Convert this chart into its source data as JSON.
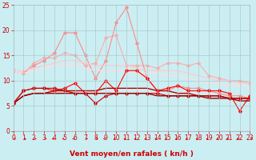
{
  "bg_color": "#cbeef3",
  "grid_color": "#aacccc",
  "xlim": [
    0,
    23
  ],
  "ylim": [
    0,
    25
  ],
  "yticks": [
    0,
    5,
    10,
    15,
    20,
    25
  ],
  "xticks": [
    0,
    1,
    2,
    3,
    4,
    5,
    6,
    7,
    8,
    9,
    10,
    11,
    12,
    13,
    14,
    15,
    16,
    17,
    18,
    19,
    20,
    21,
    22,
    23
  ],
  "series": [
    {
      "color": "#ffaaaa",
      "lw": 0.8,
      "marker": "D",
      "ms": 1.8,
      "y": [
        12.0,
        11.5,
        13.5,
        14.5,
        14.5,
        15.5,
        15.0,
        13.0,
        13.5,
        18.5,
        19.0,
        13.0,
        13.0,
        13.0,
        12.5,
        13.5,
        13.5,
        13.0,
        13.5,
        11.0,
        10.5,
        10.0,
        10.0,
        9.5
      ]
    },
    {
      "color": "#ff8888",
      "lw": 0.8,
      "marker": "D",
      "ms": 1.8,
      "y": [
        12.0,
        11.5,
        13.0,
        14.0,
        15.5,
        19.5,
        19.5,
        15.0,
        10.5,
        14.0,
        21.5,
        24.5,
        17.5,
        10.5,
        8.0,
        8.0,
        9.0,
        8.5,
        8.5,
        8.0,
        7.5,
        7.0,
        7.0,
        6.5
      ]
    },
    {
      "color": "#ffcccc",
      "lw": 1.0,
      "marker": null,
      "ms": 0,
      "y": [
        12.0,
        12.0,
        12.5,
        13.0,
        13.5,
        14.0,
        14.0,
        13.5,
        13.0,
        13.0,
        13.0,
        13.0,
        12.5,
        12.0,
        12.0,
        12.0,
        12.0,
        11.5,
        11.0,
        10.5,
        10.0,
        10.0,
        9.5,
        9.5
      ]
    },
    {
      "color": "#ffdddd",
      "lw": 1.0,
      "marker": null,
      "ms": 0,
      "y": [
        12.0,
        11.5,
        12.0,
        12.5,
        13.0,
        13.0,
        13.0,
        12.5,
        12.0,
        12.0,
        12.0,
        12.0,
        11.5,
        11.5,
        11.5,
        11.0,
        11.0,
        10.5,
        10.0,
        9.5,
        9.5,
        9.0,
        9.0,
        9.0
      ]
    },
    {
      "color": "#ff0000",
      "lw": 0.8,
      "marker": "D",
      "ms": 1.8,
      "y": [
        5.5,
        8.0,
        8.5,
        8.5,
        8.0,
        8.5,
        9.5,
        7.5,
        7.5,
        10.0,
        8.0,
        12.0,
        12.0,
        10.5,
        8.0,
        8.5,
        9.0,
        8.0,
        8.0,
        8.0,
        8.0,
        7.5,
        4.0,
        7.0
      ]
    },
    {
      "color": "#cc0000",
      "lw": 0.8,
      "marker": "D",
      "ms": 1.8,
      "y": [
        5.5,
        8.0,
        8.5,
        8.5,
        8.5,
        8.0,
        7.5,
        7.5,
        5.5,
        7.0,
        7.5,
        7.5,
        7.5,
        7.5,
        7.5,
        7.0,
        7.0,
        7.0,
        7.0,
        7.0,
        7.0,
        6.5,
        6.5,
        6.5
      ]
    },
    {
      "color": "#bb0000",
      "lw": 1.0,
      "marker": null,
      "ms": 0,
      "y": [
        5.5,
        7.0,
        7.5,
        7.5,
        8.0,
        8.0,
        8.0,
        8.0,
        8.0,
        8.5,
        8.5,
        8.5,
        8.5,
        8.5,
        8.0,
        8.0,
        7.5,
        7.5,
        7.0,
        7.0,
        7.0,
        6.5,
        6.5,
        6.5
      ]
    },
    {
      "color": "#990000",
      "lw": 1.0,
      "marker": null,
      "ms": 0,
      "y": [
        5.5,
        7.0,
        7.5,
        7.5,
        7.5,
        7.5,
        7.5,
        7.5,
        7.5,
        7.5,
        7.5,
        7.5,
        7.5,
        7.5,
        7.0,
        7.0,
        7.0,
        7.0,
        7.0,
        6.5,
        6.5,
        6.5,
        6.0,
        6.0
      ]
    }
  ],
  "xlabel": "Vent moyen/en rafales ( kn/h )",
  "xlabel_color": "#cc0000",
  "xlabel_fontsize": 6.5,
  "tick_fontsize": 5.5,
  "tick_color": "#cc0000",
  "arrow_color": "#ff0000"
}
